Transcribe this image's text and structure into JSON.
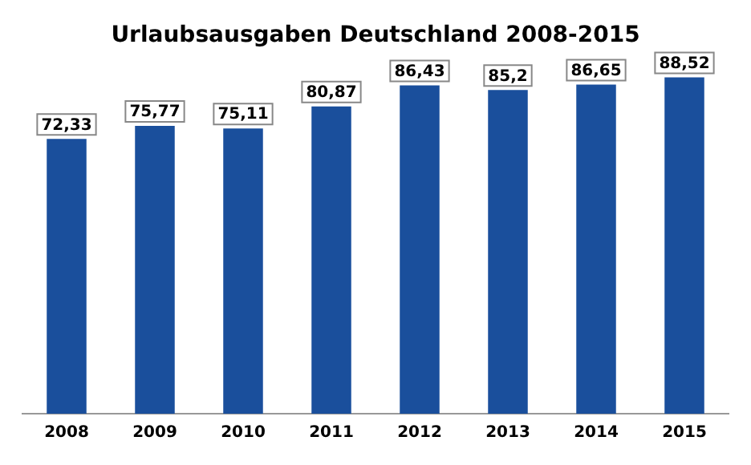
{
  "chart_data": {
    "type": "bar",
    "title": "Urlaubsausgaben Deutschland 2008-2015",
    "categories": [
      "2008",
      "2009",
      "2010",
      "2011",
      "2012",
      "2013",
      "2014",
      "2015"
    ],
    "values": [
      72.33,
      75.77,
      75.11,
      80.87,
      86.43,
      85.2,
      86.65,
      88.52
    ],
    "value_labels": [
      "72,33",
      "75,77",
      "75,11",
      "80,87",
      "86,43",
      "85,2",
      "86,65",
      "88,52"
    ],
    "color": "#1a4f9c",
    "grid": false,
    "legend": false,
    "tick_labels": "x"
  }
}
